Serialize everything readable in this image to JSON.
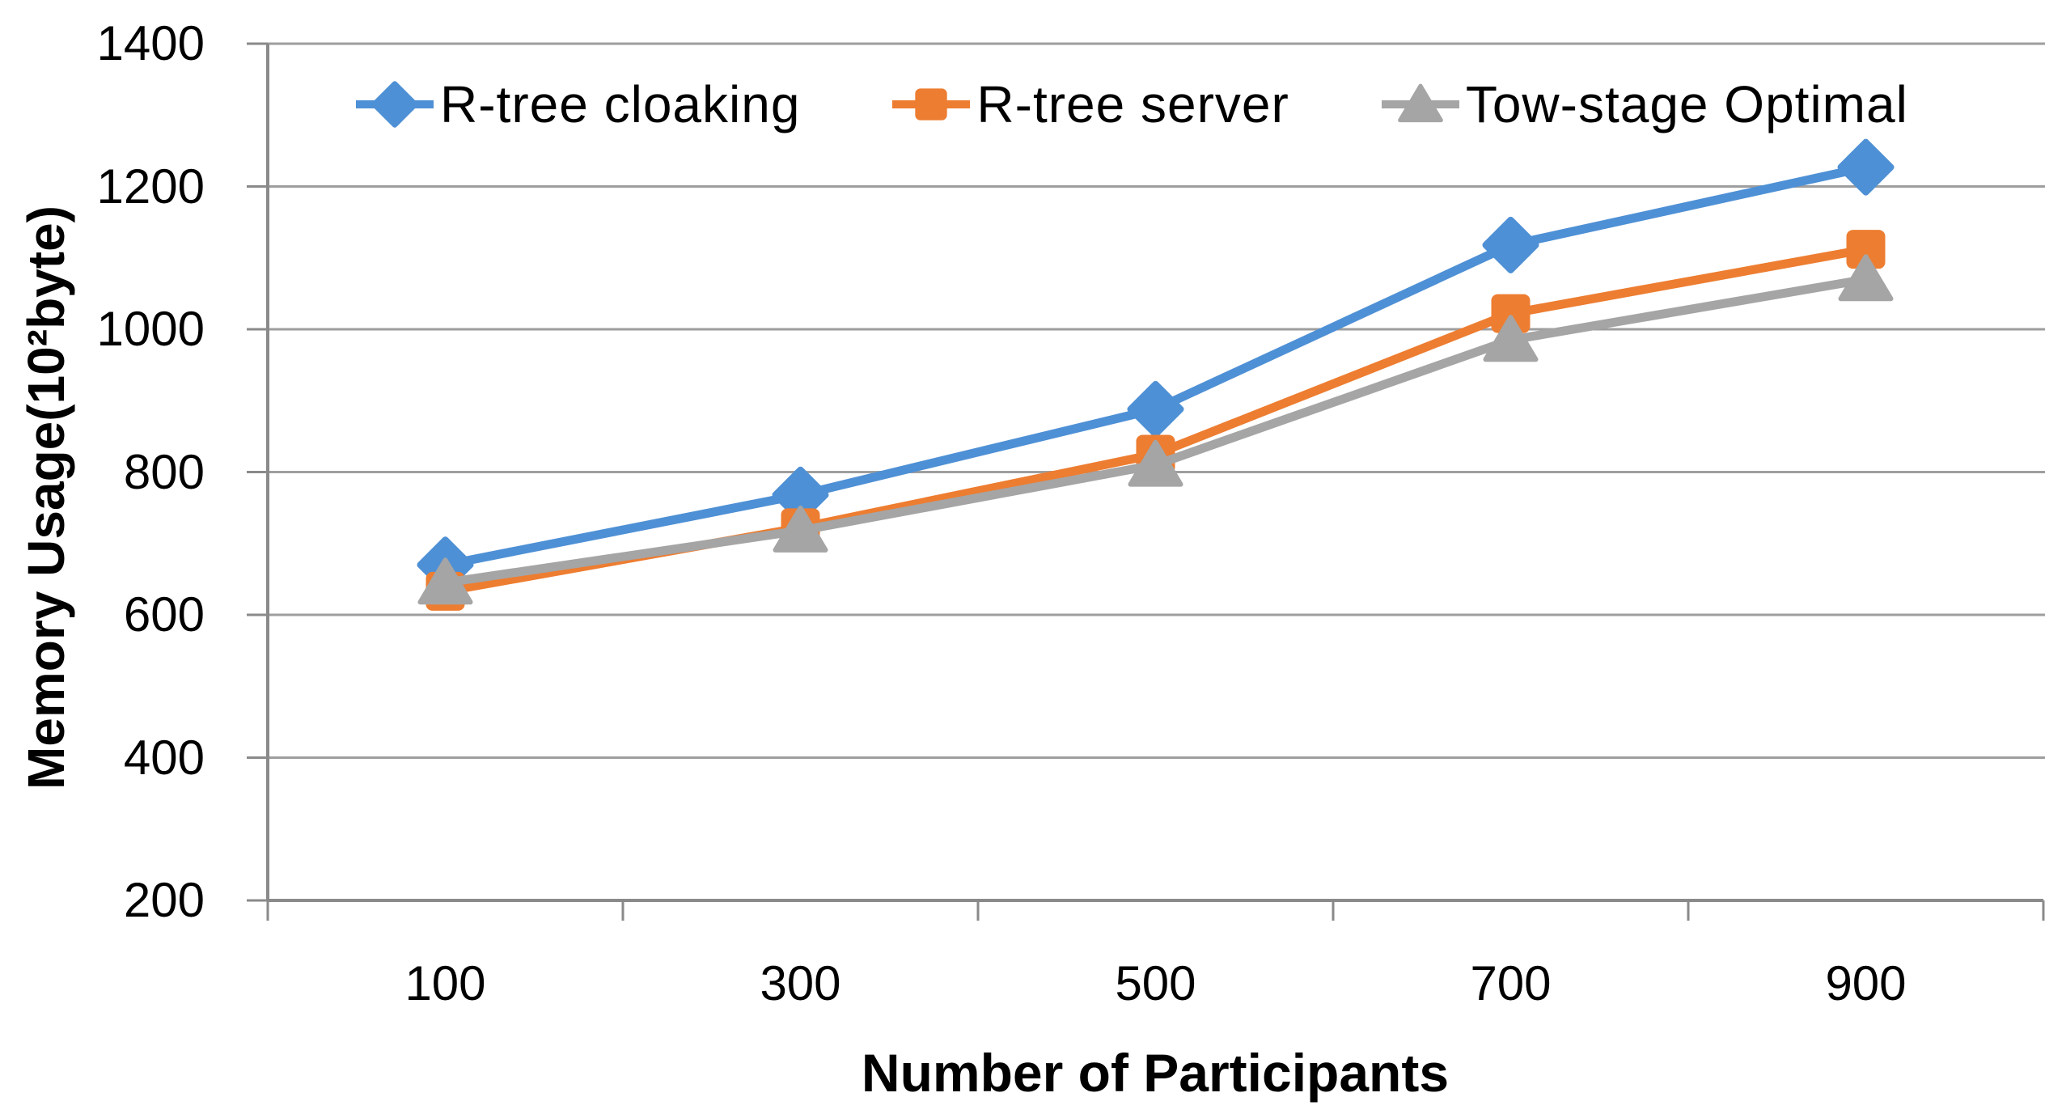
{
  "chart_data": {
    "type": "line",
    "title": "",
    "xlabel": "Number of Participants",
    "ylabel": "Memory Usage(10²byte)",
    "x_categories": [
      "100",
      "300",
      "500",
      "700",
      "900"
    ],
    "y_ticks": [
      200,
      400,
      600,
      800,
      1000,
      1200,
      1400
    ],
    "ylim": [
      200,
      1400
    ],
    "grid": "horizontal gridlines every 200, top line shown",
    "legend_position": "top inside plot, single row",
    "series": [
      {
        "name": "R-tree cloaking",
        "marker": "diamond",
        "color": "#4E90D5",
        "values": [
          670,
          768,
          888,
          1118,
          1227
        ]
      },
      {
        "name": "R-tree server",
        "marker": "square",
        "color": "#ED7D31",
        "values": [
          633,
          722,
          825,
          1022,
          1112
        ]
      },
      {
        "name": "Tow-stage Optimal",
        "marker": "triangle",
        "color": "#A5A5A5",
        "values": [
          645,
          718,
          810,
          985,
          1070
        ]
      }
    ],
    "colors": {
      "axis": "#8A8A8A",
      "gridline": "#9E9E9E",
      "text": "#000000",
      "background": "#FFFFFF"
    }
  }
}
